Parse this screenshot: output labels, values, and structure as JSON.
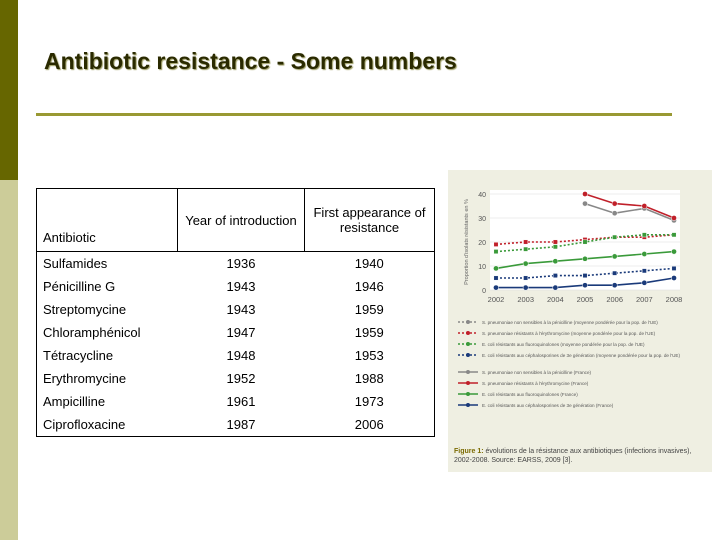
{
  "slide": {
    "title": "Antibiotic resistance - Some numbers"
  },
  "table": {
    "headers": [
      "Antibiotic",
      "Year of introduction",
      "First appearance of resistance"
    ],
    "rows": [
      {
        "antibiotic": "Sulfamides",
        "introduced": "1936",
        "resistance": "1940"
      },
      {
        "antibiotic": "Pénicilline G",
        "introduced": "1943",
        "resistance": "1946"
      },
      {
        "antibiotic": "Streptomycine",
        "introduced": "1943",
        "resistance": "1959"
      },
      {
        "antibiotic": "Chloramphénicol",
        "introduced": "1947",
        "resistance": "1959"
      },
      {
        "antibiotic": "Tétracycline",
        "introduced": "1948",
        "resistance": "1953"
      },
      {
        "antibiotic": "Erythromycine",
        "introduced": "1952",
        "resistance": "1988"
      },
      {
        "antibiotic": "Ampicilline",
        "introduced": "1961",
        "resistance": "1973"
      },
      {
        "antibiotic": "Ciprofloxacine",
        "introduced": "1987",
        "resistance": "2006"
      }
    ]
  },
  "figure": {
    "ylabel": "Proportion d'isolats résistants en %",
    "caption_label": "Figure 1:",
    "caption_text": "évolutions de la résistance aux antibiotiques (infections invasives), 2002-2008. Source: EARSS, 2009 [3].",
    "colors": {
      "grey": "#888888",
      "red": "#c0202a",
      "green": "#3a9a3a",
      "blue": "#1a3a7a"
    },
    "chart_data": {
      "type": "line",
      "x": [
        2002,
        2003,
        2004,
        2005,
        2006,
        2007,
        2008
      ],
      "ylim": [
        0,
        40
      ],
      "yticks": [
        0,
        10,
        20,
        30,
        40
      ],
      "series": [
        {
          "name": "S. pneumoniae non sensibles à la pénicilline (moyenne pondérée pour la pop. de l'UE)",
          "color": "grey",
          "dashed": true,
          "values": [
            null,
            null,
            null,
            null,
            null,
            null,
            null
          ]
        },
        {
          "name": "S. pneumoniae résistants à l'érythromycine (moyenne pondérée pour la pop. de l'UE)",
          "color": "red",
          "dashed": true,
          "values": [
            19,
            20,
            20,
            21,
            22,
            22,
            23
          ]
        },
        {
          "name": "E. coli résistants aux fluoroquinolones (moyenne pondérée pour la pop. de l'UE)",
          "color": "green",
          "dashed": true,
          "values": [
            16,
            17,
            18,
            20,
            22,
            23,
            23
          ]
        },
        {
          "name": "E. coli résistants aux céphalosporines de 3e génération (moyenne pondérée pour la pop. de l'UE)",
          "color": "blue",
          "dashed": true,
          "values": [
            5,
            5,
            6,
            6,
            7,
            8,
            9
          ]
        },
        {
          "name": "S. pneumoniae non sensibles à la pénicilline (France)",
          "color": "grey",
          "dashed": false,
          "values": [
            null,
            null,
            null,
            36,
            32,
            34,
            29
          ]
        },
        {
          "name": "S. pneumoniae résistants à l'érythromycine (France)",
          "color": "red",
          "dashed": false,
          "values": [
            null,
            null,
            null,
            40,
            36,
            35,
            30
          ]
        },
        {
          "name": "E. coli résistants aux fluoroquinolones (France)",
          "color": "green",
          "dashed": false,
          "values": [
            9,
            11,
            12,
            13,
            14,
            15,
            16
          ]
        },
        {
          "name": "E. coli résistants aux céphalosporines de 3e génération (France)",
          "color": "blue",
          "dashed": false,
          "values": [
            1,
            1,
            1,
            2,
            2,
            3,
            5
          ]
        }
      ]
    }
  }
}
